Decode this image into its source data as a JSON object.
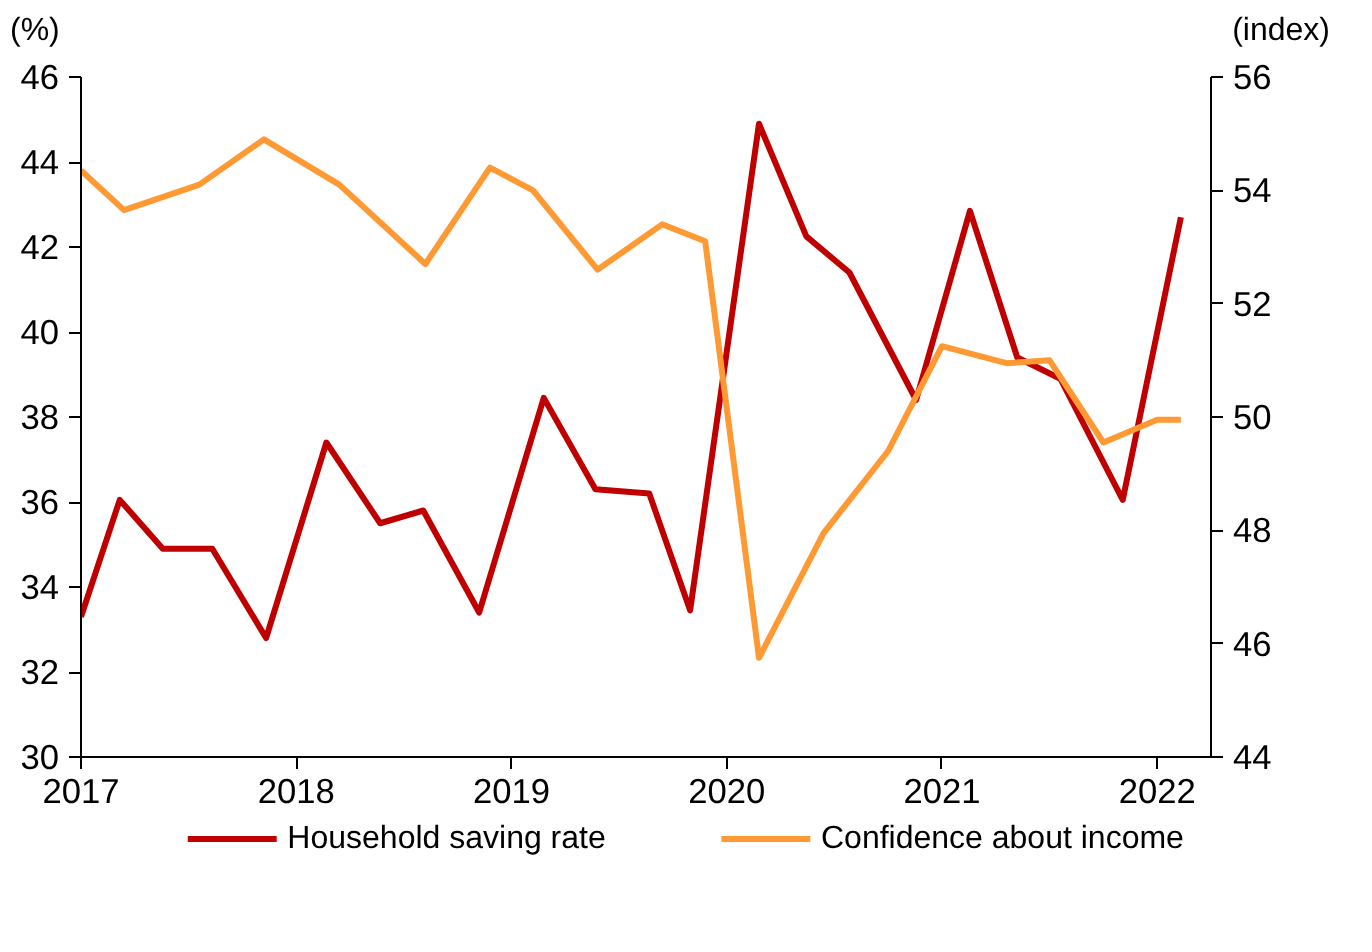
{
  "chart_data": {
    "type": "line",
    "ylabel": "(%)",
    "y2label": "(index)",
    "xlim": [
      2017,
      2022.25
    ],
    "xticks": [
      2017,
      2018,
      2019,
      2020,
      2021,
      2022
    ],
    "ylim": [
      30,
      46
    ],
    "yticks": [
      30,
      32,
      34,
      36,
      38,
      40,
      42,
      44,
      46
    ],
    "y2lim": [
      44,
      56
    ],
    "y2ticks": [
      44,
      46,
      48,
      50,
      52,
      54,
      56
    ],
    "grid": false,
    "legend": "bottom",
    "line_style": "solid",
    "series": [
      {
        "name": "Household saving rate",
        "color": "#c00000",
        "x": [
          2017.0,
          2017.18,
          2017.38,
          2017.61,
          2017.86,
          2018.14,
          2018.39,
          2018.59,
          2018.85,
          2019.15,
          2019.39,
          2019.64,
          2019.83,
          2020.15,
          2020.37,
          2020.57,
          2020.88,
          2021.13,
          2021.35,
          2021.55,
          2021.84,
          2022.11
        ],
        "values": [
          33.3,
          36.05,
          34.9,
          34.9,
          32.8,
          37.4,
          35.5,
          35.8,
          33.4,
          38.45,
          36.3,
          36.2,
          33.45,
          44.9,
          42.25,
          41.4,
          38.4,
          42.85,
          39.4,
          38.9,
          36.05,
          42.7
        ]
      },
      {
        "name": "Confidence about income",
        "color": "#ff9933",
        "axis": "y2",
        "x": [
          2017.0,
          2017.2,
          2017.55,
          2017.85,
          2018.2,
          2018.6,
          2018.9,
          2019.1,
          2019.4,
          2019.7,
          2019.9,
          2020.15,
          2020.45,
          2020.75,
          2021.0,
          2021.3,
          2021.5,
          2021.75,
          2022.0,
          2022.11
        ],
        "values": [
          54.35,
          53.65,
          54.1,
          54.9,
          54.1,
          52.7,
          54.4,
          54.0,
          52.6,
          53.4,
          53.1,
          45.75,
          47.95,
          49.4,
          51.25,
          50.95,
          51.0,
          49.55,
          49.95,
          49.95
        ]
      }
    ]
  }
}
